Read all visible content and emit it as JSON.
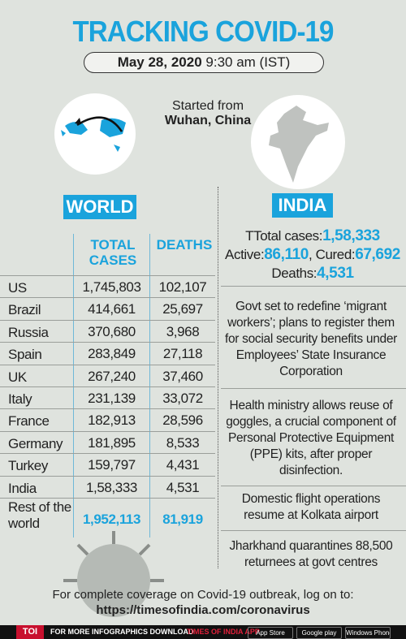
{
  "header": {
    "title": "TRACKING COVID-19",
    "date": "May 28, 2020",
    "time": "9:30 am (IST)"
  },
  "map": {
    "caption_line1": "Started from",
    "caption_line2": "Wuhan, China"
  },
  "world": {
    "heading": "WORLD",
    "table": {
      "columns": [
        "TOTAL CASES",
        "DEATHS"
      ],
      "rows": [
        [
          "US",
          "1,745,803",
          "102,107"
        ],
        [
          "Brazil",
          "414,661",
          "25,697"
        ],
        [
          "Russia",
          "370,680",
          "3,968"
        ],
        [
          "Spain",
          "283,849",
          "27,118"
        ],
        [
          "UK",
          "267,240",
          "37,460"
        ],
        [
          "Italy",
          "231,139",
          "33,072"
        ],
        [
          "France",
          "182,913",
          "28,596"
        ],
        [
          "Germany",
          "181,895",
          "8,533"
        ],
        [
          "Turkey",
          "159,797",
          "4,431"
        ],
        [
          "India",
          "1,58,333",
          "4,531"
        ],
        [
          "Rest of the world",
          "1,952,113",
          "81,919"
        ]
      ]
    }
  },
  "india": {
    "heading": "INDIA",
    "stats": [
      [
        "TTotal cases:",
        "1,58,333"
      ],
      [
        "Active:",
        "86,110",
        ", Cured:",
        "67,692"
      ],
      [
        "Deaths:",
        "4,531"
      ]
    ],
    "news": [
      "Govt set to redefine ‘migrant workers’; plans to register them for social security benefits under Employees’ State Insurance Corporation",
      "Health ministry allows reuse of goggles, a crucial component of Personal Protective Equipment (PPE) kits, after proper disinfection.",
      "Domestic flight operations resume at Kolkata airport",
      "Jharkhand quarantines 88,500 returnees at govt centres"
    ]
  },
  "footer": {
    "text": "For complete coverage on Covid-19 outbreak, log on to:",
    "url": "https://timesofindia.com/coronavirus",
    "bar": {
      "logo": "TOI",
      "text": "FOR MORE INFOGRAPHICS DOWNLOAD",
      "app": "TIMES OF INDIA APP",
      "stores": [
        "App Store",
        "Google play",
        "Windows Phone"
      ]
    }
  }
}
